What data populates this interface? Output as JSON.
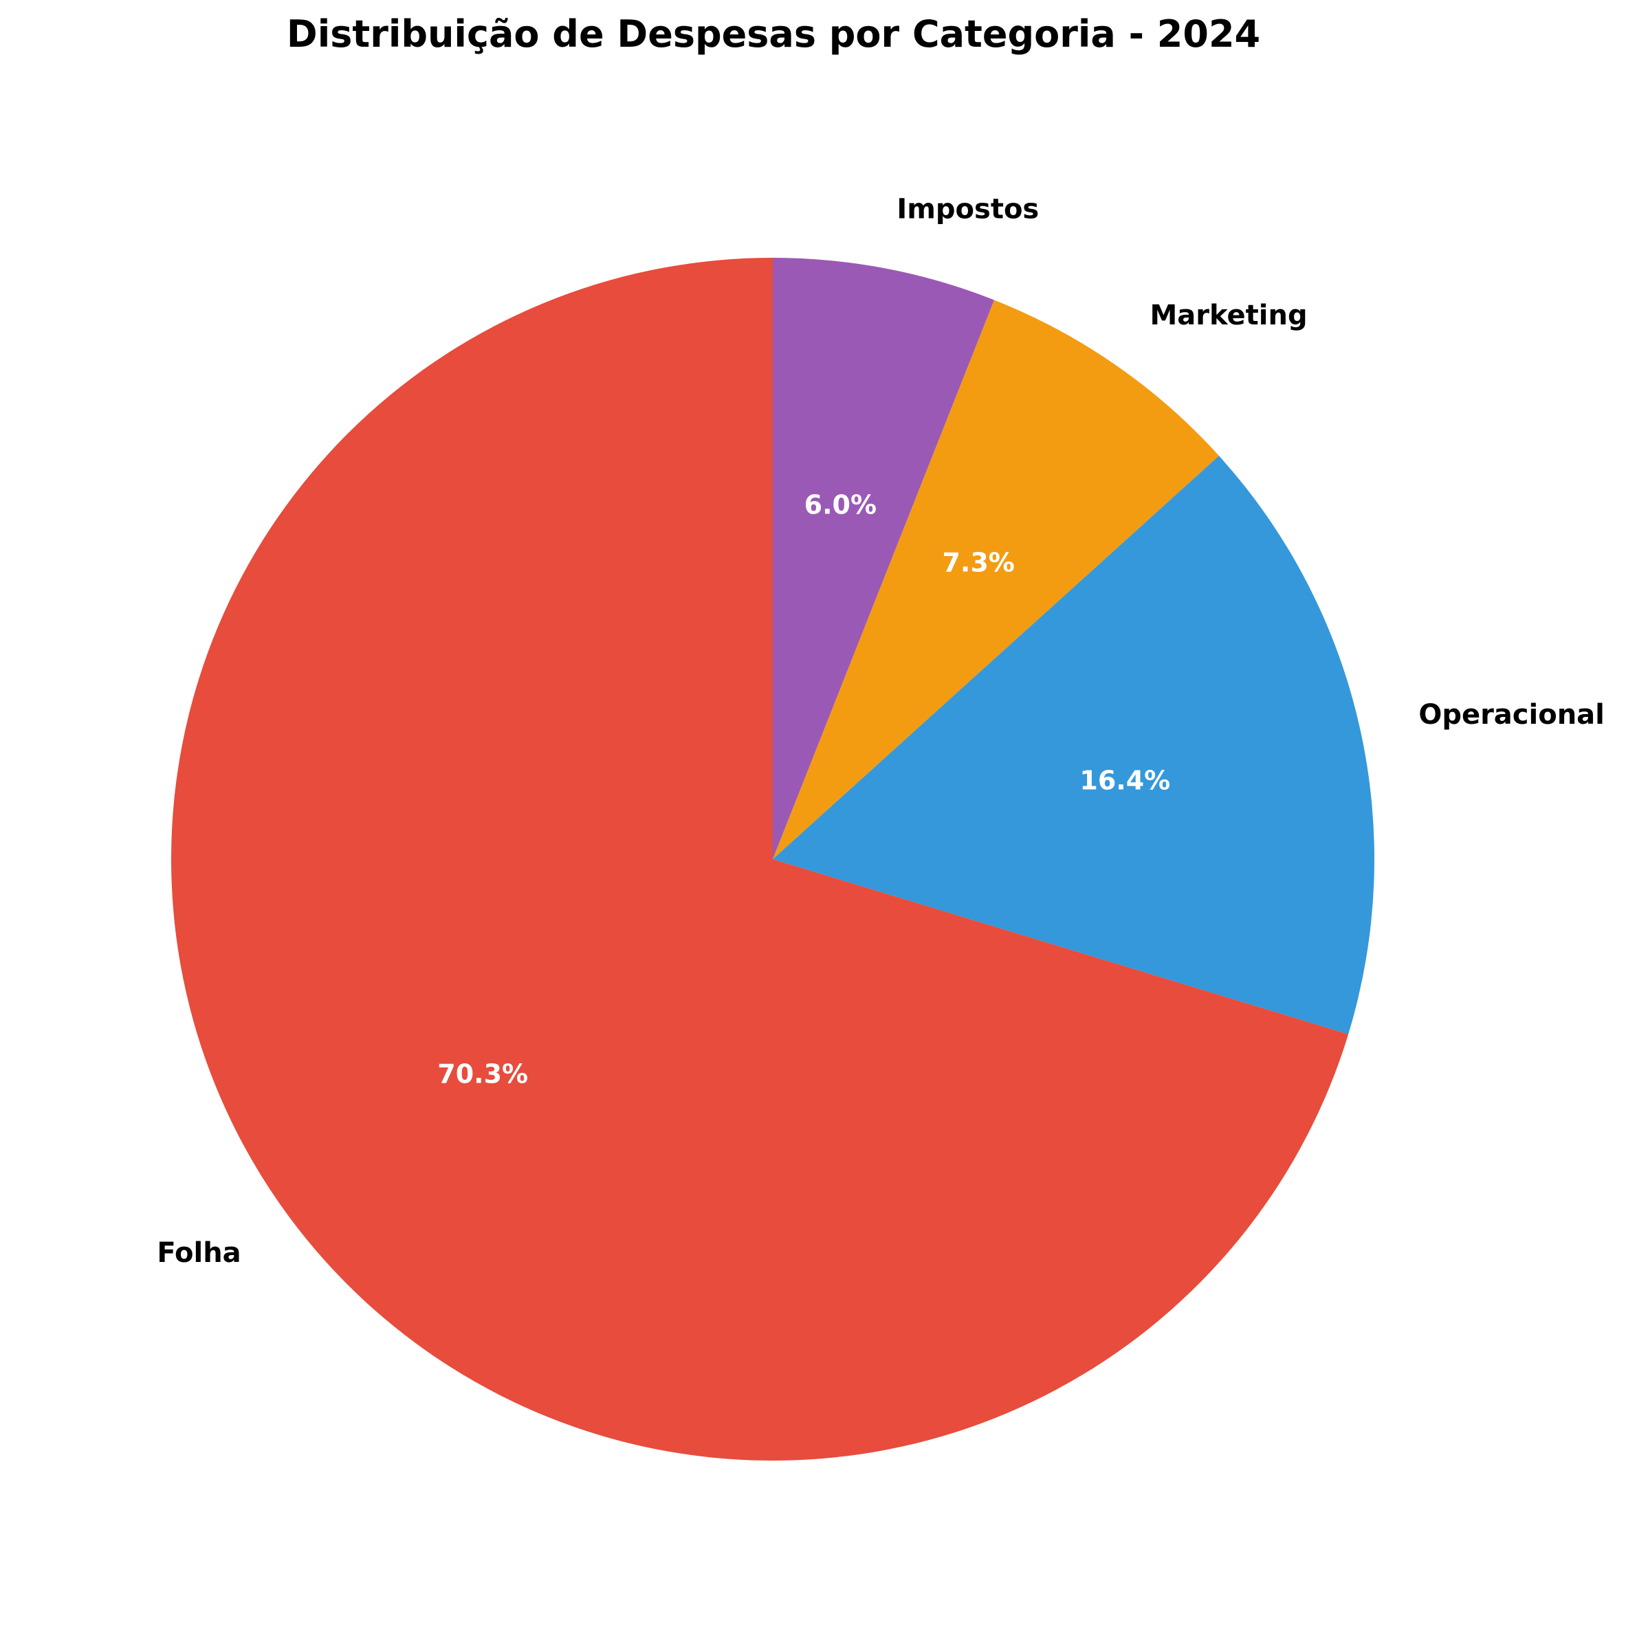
{
  "chart_data": {
    "type": "pie",
    "title": "Distribuição de Despesas por Categoria - 2024",
    "start_angle_deg": 90,
    "direction": "clockwise",
    "slices": [
      {
        "label": "Impostos",
        "value": 6.0,
        "pct_text": "6.0%",
        "color": "#9b59b6"
      },
      {
        "label": "Marketing",
        "value": 7.3,
        "pct_text": "7.3%",
        "color": "#f39c12"
      },
      {
        "label": "Operacional",
        "value": 16.4,
        "pct_text": "16.4%",
        "color": "#3498db"
      },
      {
        "label": "Folha",
        "value": 70.3,
        "pct_text": "70.3%",
        "color": "#e74c3c"
      }
    ]
  }
}
